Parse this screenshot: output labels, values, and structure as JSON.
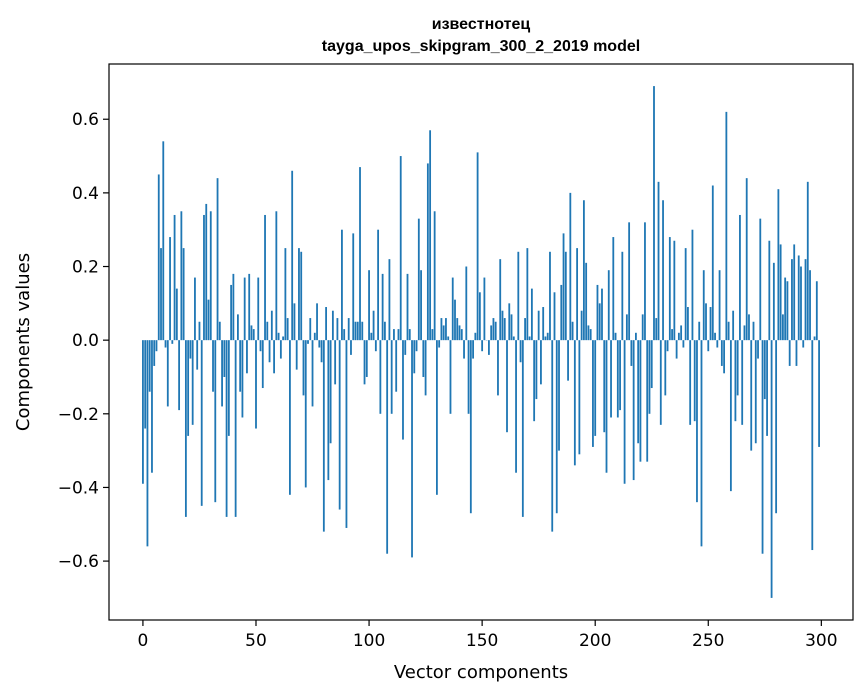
{
  "chart_data": {
    "type": "bar",
    "title": "известнотец",
    "subtitle": "tayga_upos_skipgram_300_2_2019 model",
    "xlabel": "Vector components",
    "ylabel": "Components values",
    "xlim": [
      -15,
      314
    ],
    "ylim": [
      -0.76,
      0.75
    ],
    "xticks": [
      0,
      50,
      100,
      150,
      200,
      250,
      300
    ],
    "xtick_labels": [
      "0",
      "50",
      "100",
      "150",
      "200",
      "250",
      "300"
    ],
    "yticks": [
      -0.6,
      -0.4,
      -0.2,
      0.0,
      0.2,
      0.4,
      0.6
    ],
    "ytick_labels": [
      "−0.6",
      "−0.4",
      "−0.2",
      "0.0",
      "0.2",
      "0.4",
      "0.6"
    ],
    "grid": false,
    "bar_color": "#1f77b4",
    "series": [
      {
        "values": [
          -0.39,
          -0.24,
          -0.56,
          -0.14,
          -0.36,
          -0.07,
          -0.03,
          0.45,
          0.25,
          0.54,
          -0.02,
          -0.18,
          0.28,
          -0.01,
          0.34,
          0.14,
          -0.19,
          0.35,
          0.25,
          -0.48,
          -0.26,
          -0.05,
          -0.23,
          0.17,
          -0.08,
          0.05,
          -0.45,
          0.34,
          0.37,
          0.11,
          0.35,
          -0.14,
          -0.44,
          0.44,
          0.05,
          -0.18,
          -0.1,
          -0.48,
          -0.26,
          0.15,
          0.18,
          -0.48,
          0.07,
          -0.14,
          -0.21,
          0.17,
          -0.09,
          0.18,
          0.04,
          0.03,
          -0.24,
          0.17,
          -0.03,
          -0.13,
          0.34,
          0.05,
          -0.06,
          0.08,
          -0.09,
          0.35,
          0.02,
          -0.05,
          0.01,
          0.25,
          0.06,
          -0.42,
          0.46,
          0.1,
          -0.08,
          0.25,
          0.24,
          -0.15,
          -0.4,
          -0.01,
          0.06,
          -0.18,
          0.02,
          0.1,
          -0.02,
          -0.06,
          -0.52,
          0.09,
          -0.38,
          -0.28,
          0.08,
          -0.12,
          0.06,
          -0.46,
          0.3,
          0.03,
          -0.51,
          0.06,
          -0.04,
          0.29,
          0.05,
          0.05,
          0.47,
          0.05,
          -0.12,
          -0.1,
          0.19,
          0.02,
          0.08,
          -0.03,
          0.3,
          -0.2,
          0.18,
          0.05,
          -0.58,
          0.22,
          -0.2,
          0.03,
          -0.14,
          0.03,
          0.5,
          -0.27,
          -0.04,
          0.18,
          0.03,
          -0.59,
          -0.09,
          -0.03,
          0.33,
          0.19,
          -0.1,
          -0.15,
          0.48,
          0.57,
          0.03,
          0.35,
          -0.42,
          -0.02,
          0.06,
          0.04,
          0.06,
          0.01,
          -0.2,
          0.17,
          0.11,
          0.06,
          0.04,
          0.03,
          -0.05,
          0.2,
          -0.2,
          -0.47,
          -0.05,
          0.02,
          0.51,
          0.13,
          -0.03,
          0.17,
          0.0,
          -0.04,
          0.04,
          0.06,
          0.05,
          -0.15,
          0.22,
          0.08,
          0.06,
          -0.25,
          0.1,
          0.07,
          0.01,
          -0.36,
          0.24,
          -0.06,
          -0.48,
          0.06,
          0.25,
          0.01,
          0.14,
          -0.22,
          -0.16,
          0.08,
          -0.12,
          0.09,
          0.01,
          0.02,
          0.24,
          -0.52,
          0.13,
          -0.47,
          -0.3,
          0.15,
          0.29,
          0.24,
          -0.11,
          0.4,
          0.05,
          -0.34,
          0.25,
          -0.31,
          0.08,
          0.38,
          0.21,
          0.04,
          0.03,
          -0.29,
          -0.26,
          0.15,
          0.1,
          0.14,
          -0.25,
          -0.36,
          0.19,
          -0.21,
          0.28,
          0.02,
          -0.21,
          -0.19,
          0.24,
          -0.39,
          0.07,
          0.32,
          -0.07,
          -0.38,
          0.02,
          -0.28,
          -0.33,
          0.07,
          0.32,
          -0.33,
          -0.2,
          -0.13,
          0.69,
          0.06,
          0.43,
          -0.23,
          0.38,
          -0.15,
          -0.03,
          0.28,
          0.03,
          0.27,
          -0.05,
          0.02,
          0.04,
          -0.02,
          0.25,
          0.09,
          -0.23,
          0.3,
          -0.22,
          -0.44,
          0.05,
          -0.56,
          0.19,
          0.1,
          -0.03,
          0.09,
          0.42,
          0.02,
          -0.02,
          0.19,
          -0.07,
          -0.09,
          0.62,
          0.05,
          -0.41,
          0.08,
          -0.22,
          -0.15,
          0.34,
          -0.23,
          0.04,
          0.44,
          0.07,
          -0.3,
          0.05,
          -0.28,
          -0.05,
          0.33,
          -0.58,
          -0.16,
          -0.26,
          0.27,
          -0.7,
          0.21,
          -0.47,
          0.41,
          0.26,
          0.07,
          0.17,
          0.16,
          -0.07,
          0.22,
          0.26,
          -0.07,
          0.23,
          0.2,
          -0.02,
          0.22,
          0.43,
          0.19,
          -0.57,
          0.01,
          0.16,
          -0.29
        ]
      }
    ]
  }
}
